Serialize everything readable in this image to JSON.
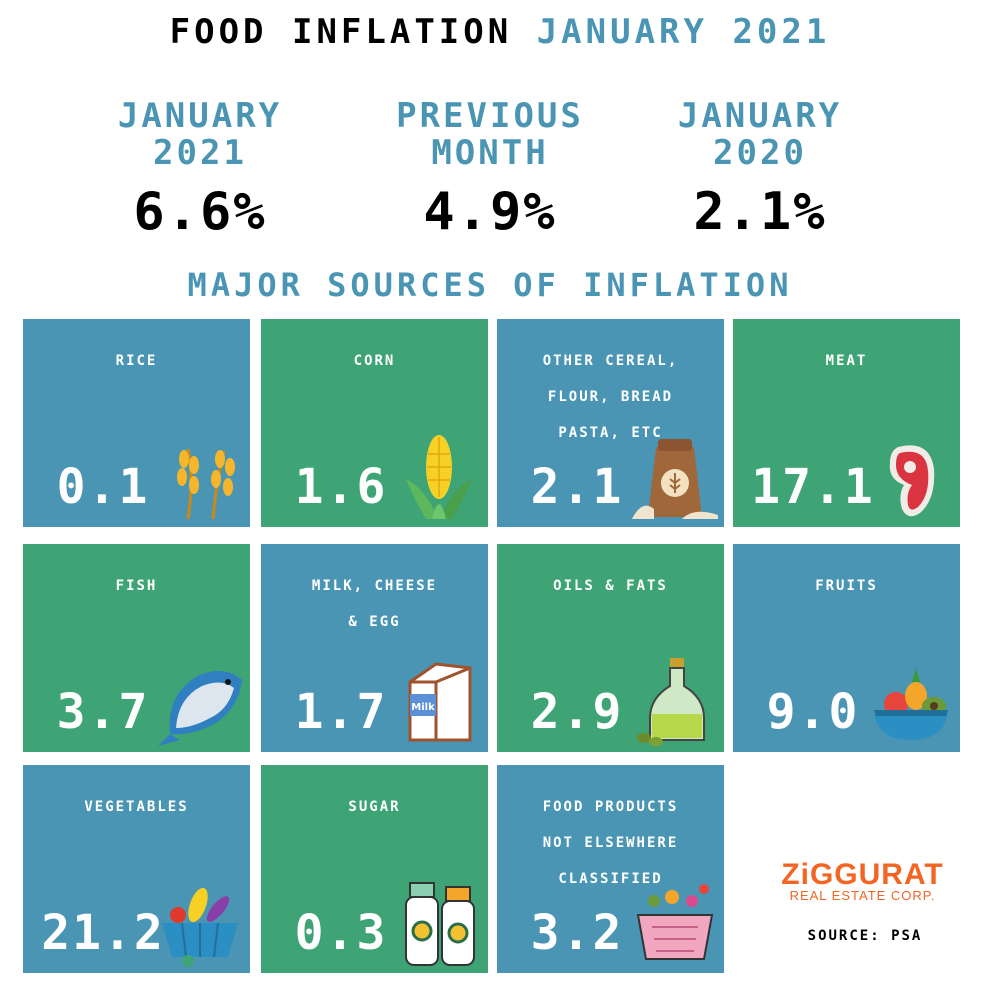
{
  "header": {
    "title_main": "FOOD INFLATION",
    "title_accent": "JANUARY 2021"
  },
  "stats": [
    {
      "label": "JANUARY\n 2021",
      "value": "6.6%"
    },
    {
      "label": "PREVIOUS\nMONTH",
      "value": "4.9%"
    },
    {
      "label": "JANUARY\n2020",
      "value": "2.1%"
    }
  ],
  "section_title": "MAJOR SOURCES OF INFLATION",
  "tiles": [
    {
      "label": "RICE",
      "value": "0.1",
      "icon": "rice-icon"
    },
    {
      "label": "CORN",
      "value": "1.6",
      "icon": "corn-icon"
    },
    {
      "label": "OTHER CEREAL,\nFLOUR, BREAD\nPASTA, ETC",
      "value": "2.1",
      "icon": "flour-sack-icon"
    },
    {
      "label": "MEAT",
      "value": "17.1",
      "icon": "steak-icon"
    },
    {
      "label": "FISH",
      "value": "3.7",
      "icon": "fish-icon"
    },
    {
      "label": "MILK, CHEESE\n& EGG",
      "value": "1.7",
      "icon": "milk-carton-icon"
    },
    {
      "label": "OILS & FATS",
      "value": "2.9",
      "icon": "oil-bottle-icon"
    },
    {
      "label": "FRUITS",
      "value": "9.0",
      "icon": "fruit-bowl-icon"
    },
    {
      "label": "VEGETABLES",
      "value": "21.2",
      "icon": "vegetable-basket-icon"
    },
    {
      "label": "SUGAR",
      "value": "0.3",
      "icon": "sugar-jars-icon"
    },
    {
      "label": "FOOD PRODUCTS\nNOT ELSEWHERE\nCLASSIFIED",
      "value": "3.2",
      "icon": "food-basket-icon"
    }
  ],
  "logo": {
    "brand": "ZiGGURAT",
    "sub": "REAL ESTATE CORP."
  },
  "source": "SOURCE: PSA",
  "colors": {
    "blue": "#4a95b3",
    "green": "#3ea476",
    "brand_orange": "#f26522"
  }
}
